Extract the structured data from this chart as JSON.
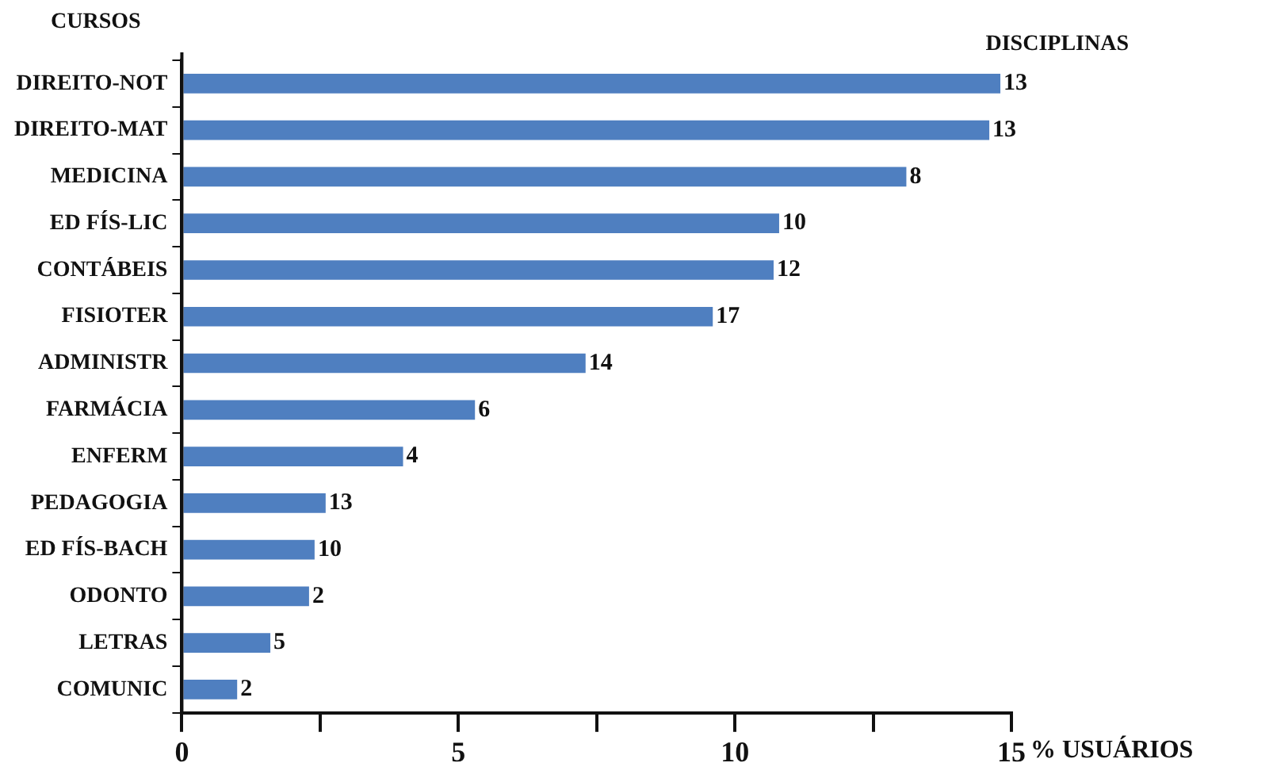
{
  "chart_data": {
    "type": "bar",
    "orientation": "horizontal",
    "ylabel": "CURSOS",
    "xlabel": "% USUÁRIOS",
    "annotations": [
      "DISCIPLINAS",
      {
        "text": "13",
        "x": 14.8,
        "y": "DIREITO-NOT"
      },
      {
        "text": "13",
        "x": 14.6,
        "y": "DIREITO-MAT"
      },
      {
        "text": "8",
        "x": 13.1,
        "y": "MEDICINA"
      },
      {
        "text": "10",
        "x": 10.8,
        "y": "ED FÍS-LIC"
      },
      {
        "text": "12",
        "x": 10.7,
        "y": "CONTÁBEIS"
      },
      {
        "text": "17",
        "x": 9.6,
        "y": "FISIOTER"
      },
      {
        "text": "14",
        "x": 7.3,
        "y": "ADMINISTR"
      },
      {
        "text": "6",
        "x": 5.3,
        "y": "FARMÁCIA"
      },
      {
        "text": "4",
        "x": 4.0,
        "y": "ENFERM"
      },
      {
        "text": "13",
        "x": 2.6,
        "y": "PEDAGOGIA"
      },
      {
        "text": "10",
        "x": 2.4,
        "y": "ED FÍS-BACH"
      },
      {
        "text": "2",
        "x": 2.3,
        "y": "ODONTO"
      },
      {
        "text": "5",
        "x": 1.6,
        "y": "LETRAS"
      },
      {
        "text": "2",
        "x": 1.0,
        "y": "COMUNIC"
      }
    ],
    "categories": [
      "DIREITO-NOT",
      "DIREITO-MAT",
      "MEDICINA",
      "ED FÍS-LIC",
      "CONTÁBEIS",
      "FISIOTER",
      "ADMINISTR",
      "FARMÁCIA",
      "ENFERM",
      "PEDAGOGIA",
      "ED FÍS-BACH",
      "ODONTO",
      "LETRAS",
      "COMUNIC"
    ],
    "values": [
      14.8,
      14.6,
      13.1,
      10.8,
      10.7,
      9.6,
      7.3,
      5.3,
      4.0,
      2.6,
      2.4,
      2.3,
      1.6,
      1.0
    ],
    "color": "#4f7fc0",
    "xlim": [
      0,
      15
    ],
    "xticks": [
      0,
      {
        "value": 2.5,
        "label": null
      },
      5,
      {
        "value": 7.5,
        "label": null
      },
      10,
      {
        "value": 12.5,
        "label": null
      },
      15
    ],
    "grid": false,
    "legend": false
  }
}
